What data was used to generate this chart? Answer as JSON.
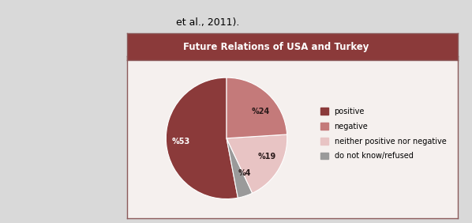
{
  "top_text": "et al., 2011).",
  "top_bg_color": "#d9d9d9",
  "top_text_color": "#000000",
  "title": "Future Relations of USA and Turkey",
  "title_bg_color": "#8b3a3a",
  "title_text_color": "#ffffff",
  "chart_bg_color": "#f5f0ee",
  "outer_bg_color": "#d9d9d9",
  "slices": [
    53,
    4,
    19,
    24
  ],
  "labels": [
    "%53",
    "%4",
    "%19",
    "%24"
  ],
  "label_colors": [
    "#ffffff",
    "#2a1a1a",
    "#2a1a1a",
    "#2a1a1a"
  ],
  "colors": [
    "#8b3a3a",
    "#9a9a9a",
    "#e8c4c4",
    "#c47a7a"
  ],
  "legend_labels": [
    "positive",
    "negative",
    "neither positive nor negative",
    "do not know/refused"
  ],
  "legend_colors": [
    "#8b3a3a",
    "#c47a7a",
    "#e8c4c4",
    "#9a9a9a"
  ],
  "startangle": 90,
  "border_color": "#8b5a5a",
  "figsize": [
    5.98,
    2.82
  ],
  "dpi": 100
}
